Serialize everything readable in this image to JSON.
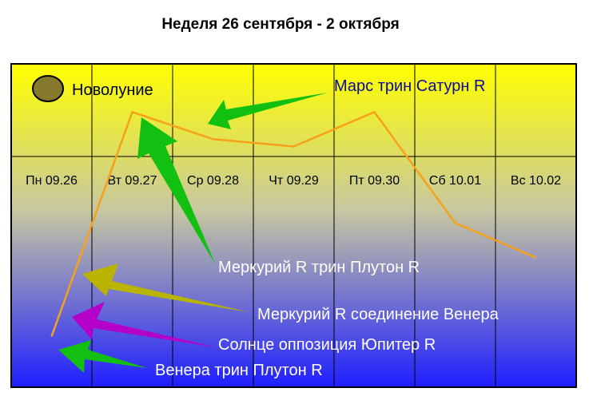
{
  "title": "Неделя 26 сентября - 2 октября",
  "chart_data": {
    "type": "line",
    "categories": [
      "Пн 09.26",
      "Вт 09.27",
      "Ср 09.28",
      "Чт 09.29",
      "Пт 09.30",
      "Сб 10.01",
      "Вс 10.02"
    ],
    "series": [
      {
        "values": [
          6,
          97,
          86,
          83,
          97,
          52,
          38
        ]
      }
    ],
    "ylim": [
      0,
      100
    ],
    "grid": true,
    "colors": {
      "line": "#f7a11a",
      "frame": "#000000",
      "bg_top": "#ffff00",
      "bg_bottom": "#1f1fff"
    },
    "moon": {
      "label": "Новолуние",
      "color": "#857a2c"
    },
    "annotations": [
      {
        "text": "Марс трин Сатурн R",
        "color": "#0a0a9a",
        "arrow_color": "#12c012"
      },
      {
        "text": "Меркурий R трин Плутон R",
        "color": "#ffffff",
        "arrow_color": "#12c012"
      },
      {
        "text": "Меркурий R соединение Венера",
        "color": "#ffffff",
        "arrow_color": "#b9b400"
      },
      {
        "text": "Солнце оппозиция Юпитер R",
        "color": "#ffffff",
        "arrow_color": "#b400c8"
      },
      {
        "text": "Венера трин Плутон R",
        "color": "#ffffff",
        "arrow_color": "#12c012"
      }
    ]
  }
}
